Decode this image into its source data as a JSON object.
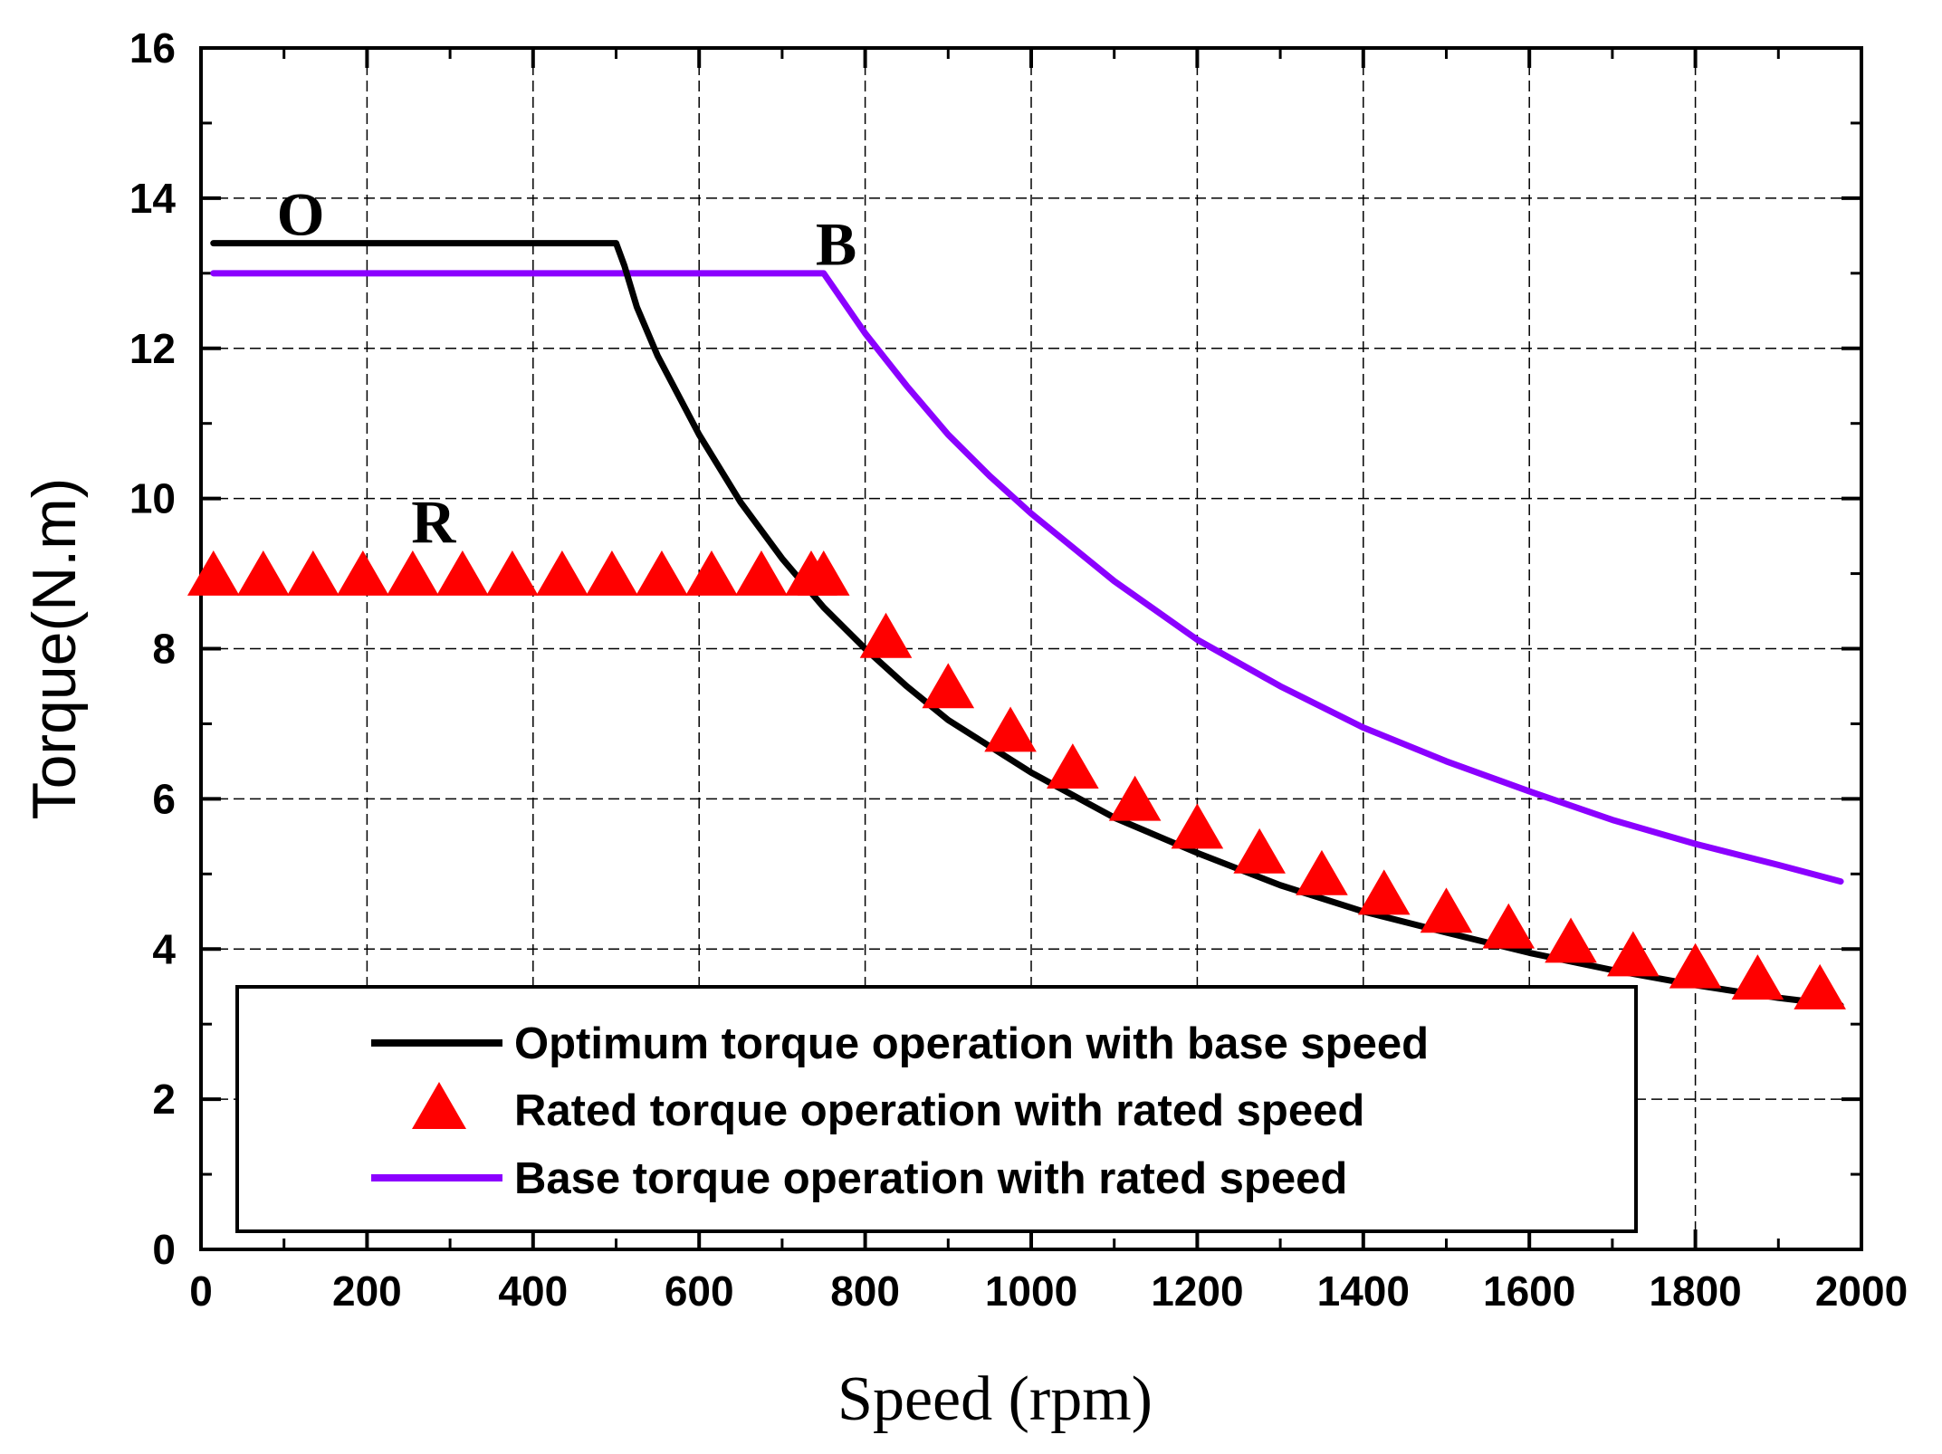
{
  "chart_data": {
    "type": "line",
    "xlabel": "Speed (rpm)",
    "ylabel": "Torque(N.m)",
    "xlim": [
      0,
      2000
    ],
    "ylim": [
      0,
      16
    ],
    "x_ticks": [
      0,
      200,
      400,
      600,
      800,
      1000,
      1200,
      1400,
      1600,
      1800,
      2000
    ],
    "y_ticks": [
      0,
      2,
      4,
      6,
      8,
      10,
      12,
      14,
      16
    ],
    "grid": true,
    "legend_position": "bottom-center",
    "annotations": [
      {
        "text": "O",
        "x": 120,
        "y": 13.8
      },
      {
        "text": "B",
        "x": 765,
        "y": 13.4
      },
      {
        "text": "R",
        "x": 280,
        "y": 9.7
      }
    ],
    "series": [
      {
        "name": "Optimum torque operation with base speed",
        "style": "line",
        "color": "#000000",
        "x": [
          15,
          100,
          200,
          300,
          400,
          500,
          510,
          525,
          550,
          600,
          650,
          700,
          750,
          800,
          850,
          900,
          950,
          1000,
          1100,
          1200,
          1300,
          1400,
          1500,
          1600,
          1700,
          1800,
          1900,
          1975
        ],
        "y": [
          13.4,
          13.4,
          13.4,
          13.4,
          13.4,
          13.4,
          13.1,
          12.55,
          11.9,
          10.85,
          9.95,
          9.2,
          8.55,
          8.0,
          7.5,
          7.05,
          6.7,
          6.35,
          5.75,
          5.28,
          4.85,
          4.5,
          4.22,
          3.95,
          3.72,
          3.52,
          3.35,
          3.25
        ]
      },
      {
        "name": "Rated torque operation with rated speed",
        "style": "triangle-markers",
        "color": "#ff0000",
        "x": [
          15,
          75,
          135,
          195,
          255,
          315,
          375,
          435,
          495,
          555,
          615,
          675,
          735,
          750,
          825,
          900,
          975,
          1050,
          1125,
          1200,
          1275,
          1350,
          1425,
          1500,
          1575,
          1650,
          1725,
          1800,
          1875,
          1950
        ],
        "y": [
          8.95,
          8.95,
          8.95,
          8.95,
          8.95,
          8.95,
          8.95,
          8.95,
          8.95,
          8.95,
          8.95,
          8.95,
          8.95,
          8.95,
          8.12,
          7.45,
          6.87,
          6.38,
          5.95,
          5.58,
          5.25,
          4.96,
          4.7,
          4.46,
          4.25,
          4.06,
          3.88,
          3.72,
          3.57,
          3.44
        ]
      },
      {
        "name": "Base torque operation with rated speed",
        "style": "line",
        "color": "#8b00ff",
        "x": [
          15,
          100,
          200,
          300,
          400,
          500,
          600,
          700,
          750,
          800,
          850,
          900,
          950,
          1000,
          1100,
          1200,
          1300,
          1400,
          1500,
          1600,
          1700,
          1800,
          1900,
          1975
        ],
        "y": [
          13.0,
          13.0,
          13.0,
          13.0,
          13.0,
          13.0,
          13.0,
          13.0,
          13.0,
          12.2,
          11.5,
          10.85,
          10.3,
          9.8,
          8.9,
          8.12,
          7.5,
          6.95,
          6.5,
          6.1,
          5.72,
          5.4,
          5.12,
          4.9
        ]
      }
    ]
  }
}
